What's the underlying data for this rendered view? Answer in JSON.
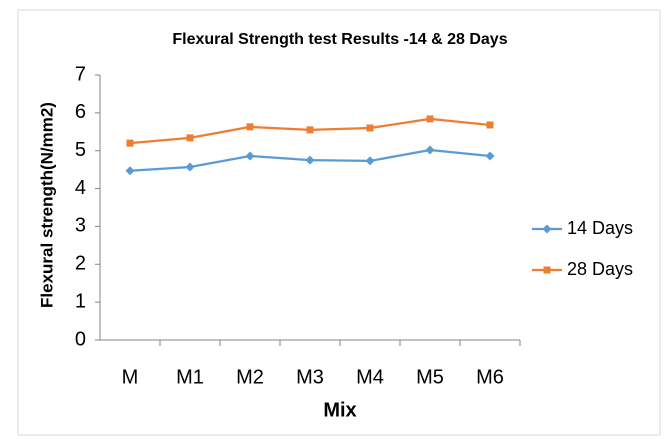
{
  "chart_data": {
    "type": "line",
    "title": "Flexural Strength  test Results -14 & 28 Days",
    "x_label": "Mix",
    "y_label": "Flexural strength(N/mm2)",
    "categories": [
      "M",
      "M1",
      "M2",
      "M3",
      "M4",
      "M5",
      "M6"
    ],
    "series": [
      {
        "name": "14 Days",
        "color": "#5b9bd5",
        "marker": "diamond",
        "values": [
          4.47,
          4.57,
          4.86,
          4.75,
          4.73,
          5.02,
          4.86
        ]
      },
      {
        "name": "28 Days",
        "color": "#ed7d31",
        "marker": "square",
        "values": [
          5.2,
          5.34,
          5.63,
          5.55,
          5.6,
          5.84,
          5.68
        ]
      }
    ],
    "ylim": [
      0,
      7
    ],
    "yticks": [
      0,
      1,
      2,
      3,
      4,
      5,
      6,
      7
    ],
    "grid": false,
    "legend": "right"
  }
}
